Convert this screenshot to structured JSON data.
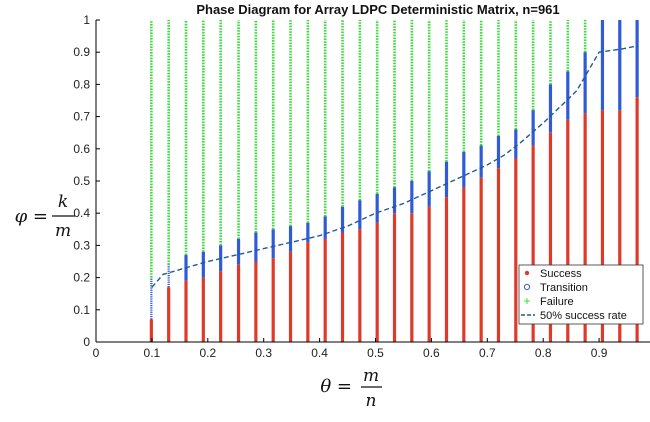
{
  "chart_data": {
    "type": "scatter",
    "title": "Phase Diagram for Array LDPC Deterministic Matrix, n=961",
    "xlabel": {
      "lhs": "θ =",
      "num": "m",
      "den": "n"
    },
    "ylabel": {
      "lhs": "φ =",
      "num": "k",
      "den": "m"
    },
    "xlim": [
      0,
      1
    ],
    "ylim": [
      0,
      1
    ],
    "xticks": [
      "0",
      "0.1",
      "0.2",
      "0.3",
      "0.4",
      "0.5",
      "0.6",
      "0.7",
      "0.8",
      "0.9"
    ],
    "yticks": [
      "0",
      "0.1",
      "0.2",
      "0.3",
      "0.4",
      "0.5",
      "0.6",
      "0.7",
      "0.8",
      "0.9",
      "1"
    ],
    "grid": false,
    "legend_position": "bottom-right",
    "columns": [
      {
        "theta": 0.099,
        "success_top": 0.07,
        "transition_top": 0.2
      },
      {
        "theta": 0.13,
        "success_top": 0.17,
        "transition_top": 0.24
      },
      {
        "theta": 0.161,
        "success_top": 0.19,
        "transition_top": 0.27
      },
      {
        "theta": 0.192,
        "success_top": 0.2,
        "transition_top": 0.28
      },
      {
        "theta": 0.223,
        "success_top": 0.22,
        "transition_top": 0.3
      },
      {
        "theta": 0.255,
        "success_top": 0.24,
        "transition_top": 0.32
      },
      {
        "theta": 0.286,
        "success_top": 0.25,
        "transition_top": 0.34
      },
      {
        "theta": 0.317,
        "success_top": 0.26,
        "transition_top": 0.35
      },
      {
        "theta": 0.348,
        "success_top": 0.28,
        "transition_top": 0.36
      },
      {
        "theta": 0.379,
        "success_top": 0.31,
        "transition_top": 0.37
      },
      {
        "theta": 0.41,
        "success_top": 0.32,
        "transition_top": 0.39
      },
      {
        "theta": 0.441,
        "success_top": 0.34,
        "transition_top": 0.42
      },
      {
        "theta": 0.472,
        "success_top": 0.35,
        "transition_top": 0.44
      },
      {
        "theta": 0.503,
        "success_top": 0.37,
        "transition_top": 0.46
      },
      {
        "theta": 0.534,
        "success_top": 0.4,
        "transition_top": 0.48
      },
      {
        "theta": 0.565,
        "success_top": 0.4,
        "transition_top": 0.5
      },
      {
        "theta": 0.596,
        "success_top": 0.42,
        "transition_top": 0.53
      },
      {
        "theta": 0.627,
        "success_top": 0.45,
        "transition_top": 0.56
      },
      {
        "theta": 0.658,
        "success_top": 0.48,
        "transition_top": 0.59
      },
      {
        "theta": 0.689,
        "success_top": 0.51,
        "transition_top": 0.61
      },
      {
        "theta": 0.72,
        "success_top": 0.54,
        "transition_top": 0.64
      },
      {
        "theta": 0.751,
        "success_top": 0.57,
        "transition_top": 0.66
      },
      {
        "theta": 0.782,
        "success_top": 0.61,
        "transition_top": 0.72
      },
      {
        "theta": 0.813,
        "success_top": 0.65,
        "transition_top": 0.8
      },
      {
        "theta": 0.844,
        "success_top": 0.69,
        "transition_top": 0.84
      },
      {
        "theta": 0.875,
        "success_top": 0.71,
        "transition_top": 0.9
      },
      {
        "theta": 0.906,
        "success_top": 0.72,
        "transition_top": 1.0
      },
      {
        "theta": 0.937,
        "success_top": 0.72,
        "transition_top": 1.0
      },
      {
        "theta": 0.968,
        "success_top": 0.76,
        "transition_top": 1.0
      }
    ],
    "fifty_percent_curve": {
      "x": [
        0.1,
        0.12,
        0.14,
        0.16,
        0.2,
        0.25,
        0.3,
        0.35,
        0.4,
        0.45,
        0.5,
        0.55,
        0.6,
        0.65,
        0.7,
        0.73,
        0.76,
        0.8,
        0.83,
        0.86,
        0.88,
        0.9,
        0.94,
        0.97
      ],
      "y": [
        0.17,
        0.21,
        0.22,
        0.23,
        0.25,
        0.27,
        0.29,
        0.31,
        0.33,
        0.36,
        0.4,
        0.43,
        0.47,
        0.51,
        0.55,
        0.58,
        0.62,
        0.68,
        0.73,
        0.78,
        0.84,
        0.9,
        0.91,
        0.92
      ]
    },
    "legend": [
      {
        "label": "Success",
        "color": "#dd3a2a",
        "marker": "dot"
      },
      {
        "label": "Transition",
        "color": "#2f5bd6",
        "marker": "circle"
      },
      {
        "label": "Failure",
        "color": "#3ddc3d",
        "marker": "plus"
      },
      {
        "label": "50% success rate",
        "color": "#1f5a9c",
        "marker": "dashed-line"
      }
    ],
    "colors": {
      "success": "#dd3a2a",
      "transition": "#2f5bd6",
      "failure": "#3ddc3d",
      "curve": "#1f5a9c"
    }
  }
}
